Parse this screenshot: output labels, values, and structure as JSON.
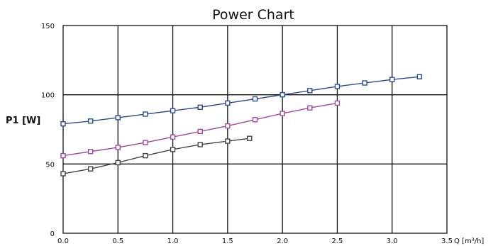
{
  "chart_data": {
    "type": "line",
    "title": "Power Chart",
    "ylabel": "P1 [W]",
    "xlabel": "Q [m³/h]",
    "xlim": [
      0,
      3.5
    ],
    "ylim": [
      0,
      150
    ],
    "x_ticks": [
      "0.0",
      "0.5",
      "1.0",
      "1.5",
      "2.0",
      "2.5",
      "3.0",
      "3.5"
    ],
    "x_tick_values": [
      0,
      0.5,
      1.0,
      1.5,
      2.0,
      2.5,
      3.0,
      3.5
    ],
    "y_ticks": [
      "0",
      "50",
      "100",
      "150"
    ],
    "y_tick_values": [
      0,
      50,
      100,
      150
    ],
    "grid": true,
    "marker": "square",
    "series": [
      {
        "color": "#2e4a8f",
        "x": [
          0.0,
          0.25,
          0.5,
          0.75,
          1.0,
          1.25,
          1.5,
          1.75,
          2.0,
          2.25,
          2.5,
          2.75,
          3.0,
          3.25
        ],
        "values": [
          79,
          81,
          83.5,
          86,
          88.5,
          91,
          94,
          97,
          100,
          103,
          106,
          108.5,
          111,
          113
        ]
      },
      {
        "color": "#a04a9e",
        "x": [
          0.0,
          0.25,
          0.5,
          0.75,
          1.0,
          1.25,
          1.5,
          1.75,
          2.0,
          2.25,
          2.5
        ],
        "values": [
          56,
          59,
          62,
          65.5,
          69.5,
          73.5,
          77.5,
          82,
          86.5,
          90.5,
          94
        ]
      },
      {
        "color": "#444444",
        "x": [
          0.0,
          0.25,
          0.5,
          0.75,
          1.0,
          1.25,
          1.5,
          1.7
        ],
        "values": [
          43,
          46.5,
          51,
          56,
          60.5,
          64,
          66.5,
          68.5
        ]
      }
    ]
  }
}
